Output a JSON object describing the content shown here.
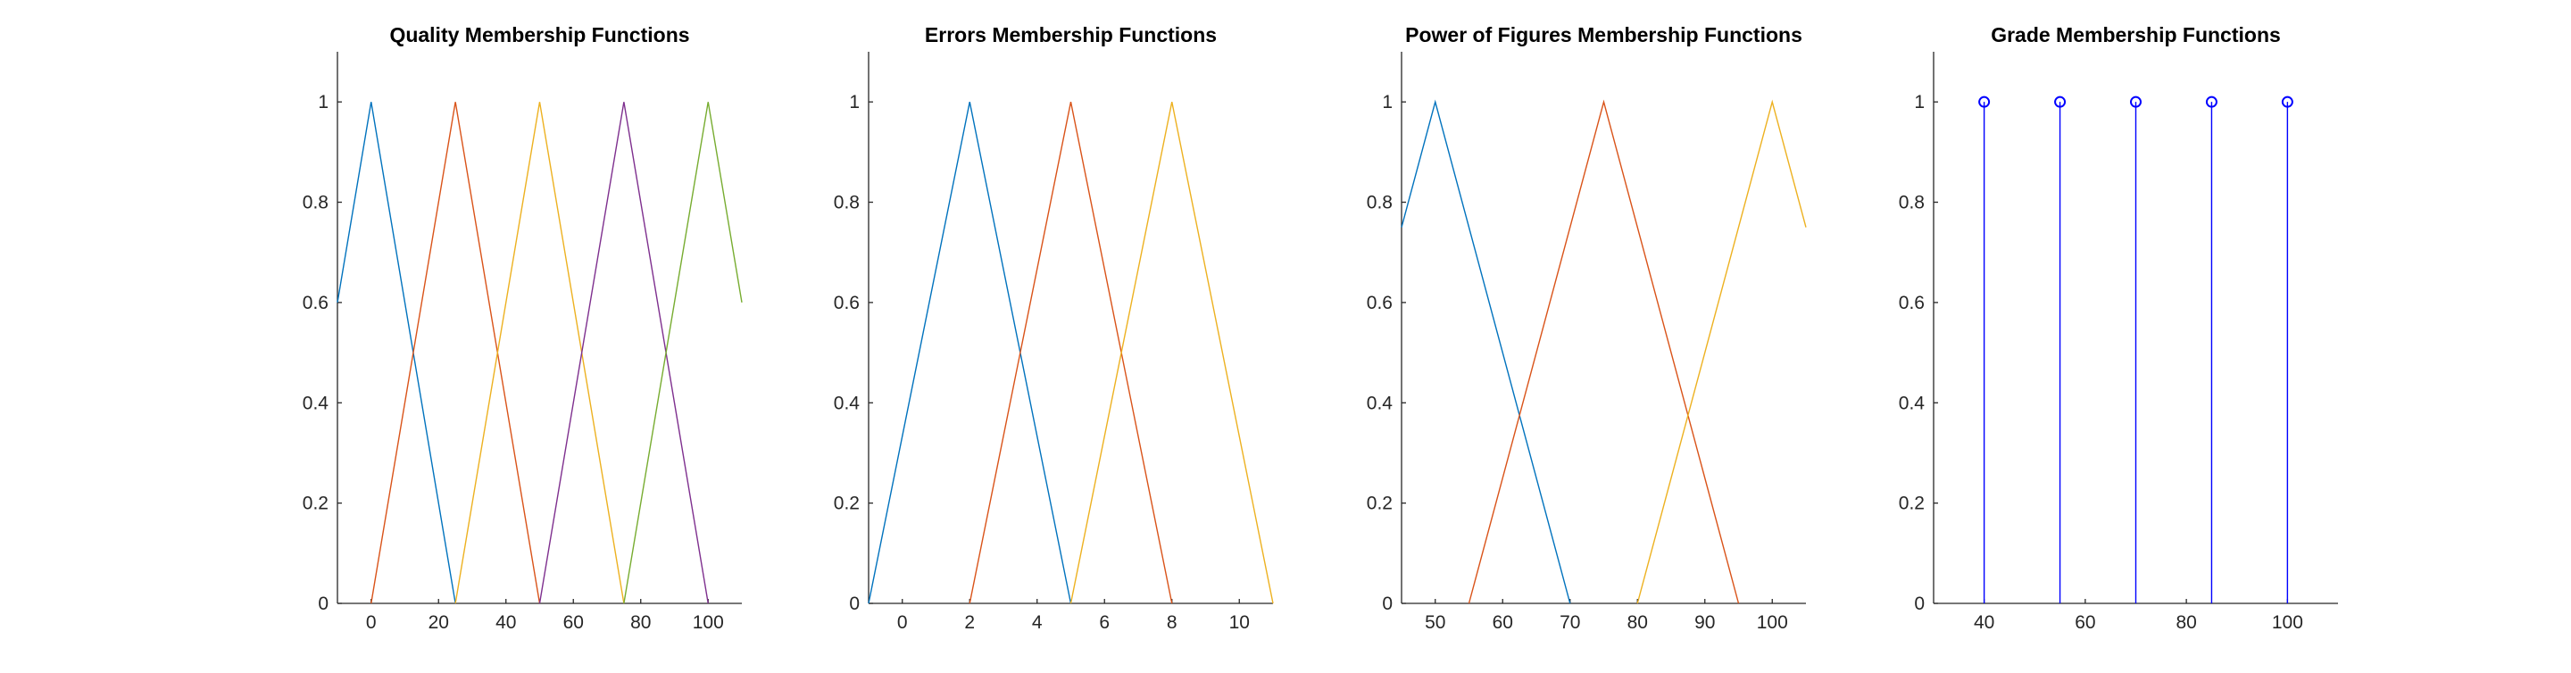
{
  "chart_data": [
    {
      "type": "line",
      "title": "Quality Membership Functions",
      "xlabel": "",
      "ylabel": "",
      "xlim": [
        -10,
        110
      ],
      "ylim": [
        0,
        1.1
      ],
      "xticks": [
        0,
        20,
        40,
        60,
        80,
        100
      ],
      "yticks": [
        0,
        0.2,
        0.4,
        0.6,
        0.8,
        1
      ],
      "ytick_labels": [
        "0",
        "0.2",
        "0.4",
        "0.6",
        "0.8",
        "1"
      ],
      "grid": false,
      "series": [
        {
          "color": "#0072BD",
          "x": [
            -10,
            0,
            25
          ],
          "y": [
            0.6,
            1,
            0
          ]
        },
        {
          "color": "#D95319",
          "x": [
            0,
            25,
            50
          ],
          "y": [
            0,
            1,
            0
          ]
        },
        {
          "color": "#EDB120",
          "x": [
            25,
            50,
            75
          ],
          "y": [
            0,
            1,
            0
          ]
        },
        {
          "color": "#7E2F8E",
          "x": [
            50,
            75,
            100
          ],
          "y": [
            0,
            1,
            0
          ]
        },
        {
          "color": "#77AC30",
          "x": [
            75,
            100,
            110
          ],
          "y": [
            0,
            1,
            0.6
          ]
        }
      ]
    },
    {
      "type": "line",
      "title": "Errors Membership Functions",
      "xlabel": "",
      "ylabel": "",
      "xlim": [
        -1,
        11
      ],
      "ylim": [
        0,
        1.1
      ],
      "xticks": [
        0,
        2,
        4,
        6,
        8,
        10
      ],
      "yticks": [
        0,
        0.2,
        0.4,
        0.6,
        0.8,
        1
      ],
      "ytick_labels": [
        "0",
        "0.2",
        "0.4",
        "0.6",
        "0.8",
        "1"
      ],
      "grid": false,
      "series": [
        {
          "color": "#0072BD",
          "x": [
            -1,
            2,
            5
          ],
          "y": [
            0,
            1,
            0
          ]
        },
        {
          "color": "#D95319",
          "x": [
            2,
            5,
            8
          ],
          "y": [
            0,
            1,
            0
          ]
        },
        {
          "color": "#EDB120",
          "x": [
            5,
            8,
            11
          ],
          "y": [
            0,
            1,
            0
          ]
        }
      ]
    },
    {
      "type": "line",
      "title": "Power of Figures Membership Functions",
      "xlabel": "",
      "ylabel": "",
      "xlim": [
        45,
        105
      ],
      "ylim": [
        0,
        1.1
      ],
      "xticks": [
        50,
        60,
        70,
        80,
        90,
        100
      ],
      "yticks": [
        0,
        0.2,
        0.4,
        0.6,
        0.8,
        1
      ],
      "ytick_labels": [
        "0",
        "0.2",
        "0.4",
        "0.6",
        "0.8",
        "1"
      ],
      "grid": false,
      "series": [
        {
          "color": "#0072BD",
          "x": [
            45,
            50,
            70
          ],
          "y": [
            0.75,
            1,
            0
          ]
        },
        {
          "color": "#D95319",
          "x": [
            55,
            75,
            95
          ],
          "y": [
            0,
            1,
            0
          ]
        },
        {
          "color": "#EDB120",
          "x": [
            80,
            100,
            105
          ],
          "y": [
            0,
            1,
            0.75
          ]
        }
      ]
    },
    {
      "type": "stem",
      "title": "Grade Membership Functions",
      "xlabel": "",
      "ylabel": "",
      "xlim": [
        30,
        110
      ],
      "ylim": [
        0,
        1.1
      ],
      "xticks": [
        40,
        60,
        80,
        100
      ],
      "yticks": [
        0,
        0.2,
        0.4,
        0.6,
        0.8,
        1
      ],
      "ytick_labels": [
        "0",
        "0.2",
        "0.4",
        "0.6",
        "0.8",
        "1"
      ],
      "grid": false,
      "color": "#0000FF",
      "x": [
        40,
        55,
        70,
        85,
        100
      ],
      "y": [
        1,
        1,
        1,
        1,
        1
      ]
    }
  ]
}
